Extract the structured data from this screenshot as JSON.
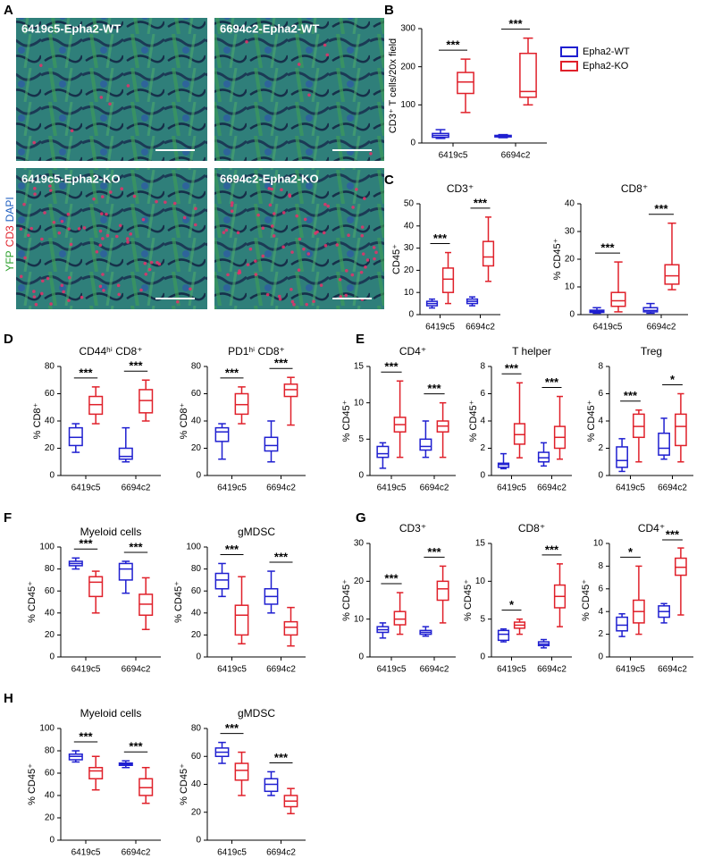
{
  "panel_labels": [
    "A",
    "B",
    "C",
    "D",
    "E",
    "F",
    "G",
    "H"
  ],
  "figure_a": {
    "images": [
      {
        "label": "6419c5-Epha2-WT"
      },
      {
        "label": "6694c2-Epha2-WT"
      },
      {
        "label": "6419c5-Epha2-KO"
      },
      {
        "label": "6694c2-Epha2-KO"
      }
    ],
    "stain_labels": [
      "YFP",
      "CD3",
      "DAPI"
    ],
    "stain_colors": [
      "#2ca02c",
      "#e0202a",
      "#2060c0"
    ]
  },
  "chart_data": [
    {
      "type": "box",
      "y_label": "CD3⁺ T cells/20x field",
      "categories": [
        "6419c5",
        "6694c2"
      ],
      "ylim": [
        0,
        300
      ],
      "yticks": [
        0,
        100,
        200,
        300
      ],
      "legend": "right",
      "series": [
        {
          "name": "Epha2-WT",
          "color": "#1f1fd0",
          "boxes": [
            {
              "min": 12,
              "q1": 15,
              "median": 20,
              "q3": 25,
              "max": 35
            },
            {
              "min": 14,
              "q1": 16,
              "median": 18,
              "q3": 20,
              "max": 22
            }
          ]
        },
        {
          "name": "Epha2-KO",
          "color": "#e0202a",
          "boxes": [
            {
              "min": 80,
              "q1": 130,
              "median": 160,
              "q3": 185,
              "max": 220
            },
            {
              "min": 100,
              "q1": 120,
              "median": 135,
              "q3": 235,
              "max": 275
            }
          ]
        }
      ],
      "significance": [
        "***",
        "***"
      ]
    },
    {
      "type": "box",
      "title": "CD3⁺",
      "y_label": "CD45⁺",
      "categories": [
        "6419c5",
        "6694c2"
      ],
      "ylim": [
        0,
        50
      ],
      "yticks": [
        0,
        10,
        20,
        30,
        40,
        50
      ],
      "series": [
        {
          "color": "#1f1fd0",
          "boxes": [
            {
              "min": 3,
              "q1": 4,
              "median": 5,
              "q3": 6,
              "max": 7
            },
            {
              "min": 4,
              "q1": 5,
              "median": 6,
              "q3": 7,
              "max": 8
            }
          ]
        },
        {
          "color": "#e0202a",
          "boxes": [
            {
              "min": 5,
              "q1": 10,
              "median": 16,
              "q3": 21,
              "max": 28
            },
            {
              "min": 15,
              "q1": 22,
              "median": 26,
              "q3": 33,
              "max": 44
            }
          ]
        }
      ],
      "significance": [
        "***",
        "***"
      ]
    },
    {
      "type": "box",
      "title": "CD8⁺",
      "y_label": "% CD45⁺",
      "categories": [
        "6419c5",
        "6694c2"
      ],
      "ylim": [
        0,
        40
      ],
      "yticks": [
        0,
        10,
        20,
        30,
        40
      ],
      "series": [
        {
          "color": "#1f1fd0",
          "boxes": [
            {
              "min": 0.5,
              "q1": 0.8,
              "median": 1.2,
              "q3": 1.6,
              "max": 2.5
            },
            {
              "min": 0.5,
              "q1": 1,
              "median": 1.5,
              "q3": 2.5,
              "max": 4
            }
          ]
        },
        {
          "color": "#e0202a",
          "boxes": [
            {
              "min": 1,
              "q1": 3,
              "median": 5,
              "q3": 8,
              "max": 19
            },
            {
              "min": 9,
              "q1": 11,
              "median": 14,
              "q3": 18,
              "max": 33
            }
          ]
        }
      ],
      "significance": [
        "***",
        "***"
      ]
    },
    {
      "type": "box",
      "title": "CD44ʰⁱ CD8⁺",
      "y_label": "% CD8⁺",
      "categories": [
        "6419c5",
        "6694c2"
      ],
      "ylim": [
        0,
        80
      ],
      "yticks": [
        0,
        20,
        40,
        60,
        80
      ],
      "series": [
        {
          "color": "#1f1fd0",
          "boxes": [
            {
              "min": 17,
              "q1": 22,
              "median": 28,
              "q3": 35,
              "max": 38
            },
            {
              "min": 10,
              "q1": 12,
              "median": 14,
              "q3": 20,
              "max": 35
            }
          ]
        },
        {
          "color": "#e0202a",
          "boxes": [
            {
              "min": 38,
              "q1": 45,
              "median": 52,
              "q3": 58,
              "max": 65
            },
            {
              "min": 40,
              "q1": 46,
              "median": 55,
              "q3": 63,
              "max": 70
            }
          ]
        }
      ],
      "significance": [
        "***",
        "***"
      ]
    },
    {
      "type": "box",
      "title": "PD1ʰⁱ CD8⁺",
      "y_label": "% CD8⁺",
      "categories": [
        "6419c5",
        "6694c2"
      ],
      "ylim": [
        0,
        80
      ],
      "yticks": [
        0,
        20,
        40,
        60,
        80
      ],
      "series": [
        {
          "color": "#1f1fd0",
          "boxes": [
            {
              "min": 12,
              "q1": 25,
              "median": 32,
              "q3": 35,
              "max": 38
            },
            {
              "min": 10,
              "q1": 18,
              "median": 22,
              "q3": 28,
              "max": 40
            }
          ]
        },
        {
          "color": "#e0202a",
          "boxes": [
            {
              "min": 38,
              "q1": 45,
              "median": 52,
              "q3": 60,
              "max": 65
            },
            {
              "min": 37,
              "q1": 58,
              "median": 63,
              "q3": 67,
              "max": 72
            }
          ]
        }
      ],
      "significance": [
        "***",
        "***"
      ]
    },
    {
      "type": "box",
      "title": "CD4⁺",
      "y_label": "% CD45⁺",
      "categories": [
        "6419c5",
        "6694c2"
      ],
      "ylim": [
        0,
        15
      ],
      "yticks": [
        0,
        5,
        10,
        15
      ],
      "series": [
        {
          "color": "#1f1fd0",
          "boxes": [
            {
              "min": 1,
              "q1": 2.5,
              "median": 3,
              "q3": 4,
              "max": 4.5
            },
            {
              "min": 2.5,
              "q1": 3.5,
              "median": 4,
              "q3": 5,
              "max": 7.5
            }
          ]
        },
        {
          "color": "#e0202a",
          "boxes": [
            {
              "min": 2.5,
              "q1": 6,
              "median": 7,
              "q3": 8,
              "max": 13
            },
            {
              "min": 2.5,
              "q1": 6,
              "median": 6.8,
              "q3": 7.5,
              "max": 10
            }
          ]
        }
      ],
      "significance": [
        "***",
        "***"
      ]
    },
    {
      "type": "box",
      "title": "T helper",
      "y_label": "% CD45⁺",
      "categories": [
        "6419c5",
        "6694c2"
      ],
      "ylim": [
        0,
        8
      ],
      "yticks": [
        0,
        2,
        4,
        6,
        8
      ],
      "series": [
        {
          "color": "#1f1fd0",
          "boxes": [
            {
              "min": 0.5,
              "q1": 0.6,
              "median": 0.8,
              "q3": 0.9,
              "max": 1.6
            },
            {
              "min": 0.7,
              "q1": 1,
              "median": 1.3,
              "q3": 1.7,
              "max": 2.4
            }
          ]
        },
        {
          "color": "#e0202a",
          "boxes": [
            {
              "min": 1.3,
              "q1": 2.3,
              "median": 3,
              "q3": 3.8,
              "max": 6.8
            },
            {
              "min": 1.2,
              "q1": 2,
              "median": 2.8,
              "q3": 3.6,
              "max": 5.8
            }
          ]
        }
      ],
      "significance": [
        "***",
        "***"
      ]
    },
    {
      "type": "box",
      "title": "Treg",
      "y_label": "% CD45⁺",
      "categories": [
        "6419c5",
        "6694c2"
      ],
      "ylim": [
        0,
        8
      ],
      "yticks": [
        0,
        2,
        4,
        6,
        8
      ],
      "series": [
        {
          "color": "#1f1fd0",
          "boxes": [
            {
              "min": 0.3,
              "q1": 0.6,
              "median": 1.1,
              "q3": 2.1,
              "max": 2.7
            },
            {
              "min": 1.2,
              "q1": 1.5,
              "median": 2,
              "q3": 3.1,
              "max": 4.2
            }
          ]
        },
        {
          "color": "#e0202a",
          "boxes": [
            {
              "min": 1,
              "q1": 2.8,
              "median": 3.6,
              "q3": 4.5,
              "max": 4.8
            },
            {
              "min": 1,
              "q1": 2.2,
              "median": 3.6,
              "q3": 4.5,
              "max": 6
            }
          ]
        }
      ],
      "significance": [
        "***",
        "*"
      ]
    },
    {
      "type": "box",
      "title": "Myeloid cells",
      "y_label": "% CD45⁺",
      "categories": [
        "6419c5",
        "6694c2"
      ],
      "ylim": [
        0,
        100
      ],
      "yticks": [
        0,
        20,
        40,
        60,
        80,
        100
      ],
      "series": [
        {
          "color": "#1f1fd0",
          "boxes": [
            {
              "min": 80,
              "q1": 83,
              "median": 85,
              "q3": 87,
              "max": 90
            },
            {
              "min": 58,
              "q1": 70,
              "median": 80,
              "q3": 85,
              "max": 87
            }
          ]
        },
        {
          "color": "#e0202a",
          "boxes": [
            {
              "min": 40,
              "q1": 55,
              "median": 68,
              "q3": 73,
              "max": 78
            },
            {
              "min": 25,
              "q1": 38,
              "median": 48,
              "q3": 57,
              "max": 72
            }
          ]
        }
      ],
      "significance": [
        "***",
        "***"
      ]
    },
    {
      "type": "box",
      "title": "gMDSC",
      "y_label": "% CD45⁺",
      "categories": [
        "6419c5",
        "6694c2"
      ],
      "ylim": [
        0,
        100
      ],
      "yticks": [
        0,
        20,
        40,
        60,
        80,
        100
      ],
      "series": [
        {
          "color": "#1f1fd0",
          "boxes": [
            {
              "min": 55,
              "q1": 62,
              "median": 70,
              "q3": 76,
              "max": 85
            },
            {
              "min": 40,
              "q1": 48,
              "median": 55,
              "q3": 62,
              "max": 78
            }
          ]
        },
        {
          "color": "#e0202a",
          "boxes": [
            {
              "min": 12,
              "q1": 20,
              "median": 38,
              "q3": 47,
              "max": 73
            },
            {
              "min": 10,
              "q1": 20,
              "median": 27,
              "q3": 32,
              "max": 45
            }
          ]
        }
      ],
      "significance": [
        "***",
        "***"
      ]
    },
    {
      "type": "box",
      "title": "CD3⁺",
      "y_label": "% CD45⁺",
      "categories": [
        "6419c5",
        "6694c2"
      ],
      "ylim": [
        0,
        30
      ],
      "yticks": [
        0,
        10,
        20,
        30
      ],
      "series": [
        {
          "color": "#1f1fd0",
          "boxes": [
            {
              "min": 5,
              "q1": 6.5,
              "median": 7.2,
              "q3": 8,
              "max": 9
            },
            {
              "min": 5.5,
              "q1": 6,
              "median": 6.5,
              "q3": 7,
              "max": 8
            }
          ]
        },
        {
          "color": "#e0202a",
          "boxes": [
            {
              "min": 6,
              "q1": 8.5,
              "median": 10,
              "q3": 12,
              "max": 17
            },
            {
              "min": 9,
              "q1": 15,
              "median": 18,
              "q3": 20,
              "max": 24
            }
          ]
        }
      ],
      "significance": [
        "***",
        "***"
      ]
    },
    {
      "type": "box",
      "title": "CD8⁺",
      "y_label": "% CD45⁺",
      "categories": [
        "6419c5",
        "6694c2"
      ],
      "ylim": [
        0,
        15
      ],
      "yticks": [
        0,
        5,
        10,
        15
      ],
      "series": [
        {
          "color": "#1f1fd0",
          "boxes": [
            {
              "min": 2,
              "q1": 2.2,
              "median": 3,
              "q3": 3.5,
              "max": 3.7
            },
            {
              "min": 1.2,
              "q1": 1.5,
              "median": 1.7,
              "q3": 2,
              "max": 2.3
            }
          ]
        },
        {
          "color": "#e0202a",
          "boxes": [
            {
              "min": 3,
              "q1": 3.8,
              "median": 4.2,
              "q3": 4.6,
              "max": 5
            },
            {
              "min": 4,
              "q1": 6.5,
              "median": 8,
              "q3": 9.5,
              "max": 12.3
            }
          ]
        }
      ],
      "significance": [
        "*",
        "***"
      ]
    },
    {
      "type": "box",
      "title": "CD4⁺",
      "y_label": "% CD45⁺",
      "categories": [
        "6419c5",
        "6694c2"
      ],
      "ylim": [
        0,
        10
      ],
      "yticks": [
        0,
        2,
        4,
        6,
        8,
        10
      ],
      "series": [
        {
          "color": "#1f1fd0",
          "boxes": [
            {
              "min": 1.8,
              "q1": 2.3,
              "median": 2.8,
              "q3": 3.5,
              "max": 3.8
            },
            {
              "min": 3,
              "q1": 3.5,
              "median": 4,
              "q3": 4.5,
              "max": 4.7
            }
          ]
        },
        {
          "color": "#e0202a",
          "boxes": [
            {
              "min": 2,
              "q1": 3,
              "median": 4,
              "q3": 5,
              "max": 8
            },
            {
              "min": 3.7,
              "q1": 7.2,
              "median": 7.9,
              "q3": 8.7,
              "max": 9.6
            }
          ]
        }
      ],
      "significance": [
        "*",
        "***"
      ]
    },
    {
      "type": "box",
      "title": "Myeloid cells",
      "y_label": "% CD45⁺",
      "categories": [
        "6419c5",
        "6694c2"
      ],
      "ylim": [
        0,
        100
      ],
      "yticks": [
        0,
        20,
        40,
        60,
        80,
        100
      ],
      "series": [
        {
          "color": "#1f1fd0",
          "boxes": [
            {
              "min": 70,
              "q1": 72,
              "median": 75,
              "q3": 77,
              "max": 80
            },
            {
              "min": 65,
              "q1": 67,
              "median": 68,
              "q3": 69,
              "max": 71
            }
          ]
        },
        {
          "color": "#e0202a",
          "boxes": [
            {
              "min": 45,
              "q1": 55,
              "median": 62,
              "q3": 65,
              "max": 75
            },
            {
              "min": 33,
              "q1": 40,
              "median": 47,
              "q3": 55,
              "max": 65
            }
          ]
        }
      ],
      "significance": [
        "***",
        "***"
      ]
    },
    {
      "type": "box",
      "title": "gMDSC",
      "y_label": "% CD45⁺",
      "categories": [
        "6419c5",
        "6694c2"
      ],
      "ylim": [
        0,
        80
      ],
      "yticks": [
        0,
        20,
        40,
        60,
        80
      ],
      "series": [
        {
          "color": "#1f1fd0",
          "boxes": [
            {
              "min": 55,
              "q1": 60,
              "median": 63,
              "q3": 66,
              "max": 70
            },
            {
              "min": 32,
              "q1": 35,
              "median": 40,
              "q3": 44,
              "max": 49
            }
          ]
        },
        {
          "color": "#e0202a",
          "boxes": [
            {
              "min": 32,
              "q1": 43,
              "median": 50,
              "q3": 55,
              "max": 63
            },
            {
              "min": 19,
              "q1": 24,
              "median": 28,
              "q3": 32,
              "max": 37
            }
          ]
        }
      ],
      "significance": [
        "***",
        "***"
      ]
    }
  ]
}
